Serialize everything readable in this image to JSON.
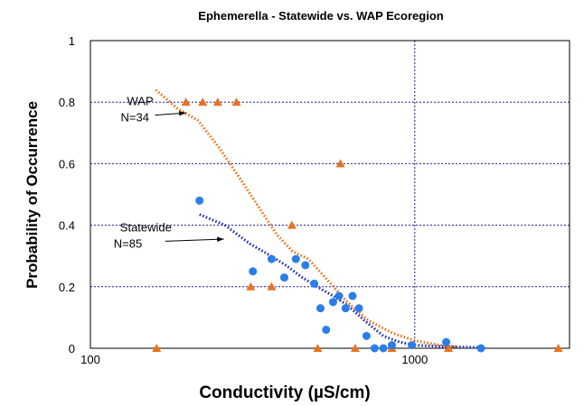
{
  "chart_data": {
    "type": "scatter",
    "title": "Ephemerella - Statewide vs. WAP Ecoregion",
    "xlabel": "Conductivity (µS/cm)",
    "ylabel": "Probability of Occurrence",
    "x_scale": "log",
    "xlim": [
      100,
      3000
    ],
    "ylim": [
      0,
      1
    ],
    "x_ticks": [
      {
        "value": 100,
        "label": "100"
      },
      {
        "value": 1000,
        "label": "1000"
      }
    ],
    "y_ticks": [
      {
        "value": 0,
        "label": "0"
      },
      {
        "value": 0.2,
        "label": "0.2"
      },
      {
        "value": 0.4,
        "label": "0.4"
      },
      {
        "value": 0.6,
        "label": "0.6"
      },
      {
        "value": 0.8,
        "label": "0.8"
      },
      {
        "value": 1,
        "label": "1"
      }
    ],
    "grid": true,
    "series": [
      {
        "kind": "points",
        "marker": "triangle",
        "color": "#e8731f",
        "points": [
          [
            160,
            0
          ],
          [
            197,
            0.8
          ],
          [
            222,
            0.8
          ],
          [
            247,
            0.8
          ],
          [
            282,
            0.8
          ],
          [
            312,
            0.2
          ],
          [
            362,
            0.2
          ],
          [
            418,
            0.4
          ],
          [
            502,
            0
          ],
          [
            590,
            0.6
          ],
          [
            655,
            0
          ],
          [
            850,
            0
          ],
          [
            1270,
            0
          ],
          [
            2770,
            0
          ]
        ]
      },
      {
        "kind": "points",
        "marker": "circle",
        "color": "#2b7de9",
        "points": [
          [
            217,
            0.48
          ],
          [
            317,
            0.25
          ],
          [
            362,
            0.29
          ],
          [
            396,
            0.23
          ],
          [
            430,
            0.29
          ],
          [
            460,
            0.27
          ],
          [
            490,
            0.21
          ],
          [
            512,
            0.13
          ],
          [
            533,
            0.06
          ],
          [
            560,
            0.15
          ],
          [
            584,
            0.17
          ],
          [
            612,
            0.13
          ],
          [
            643,
            0.17
          ],
          [
            673,
            0.13
          ],
          [
            710,
            0.04
          ],
          [
            752,
            0
          ],
          [
            800,
            0
          ],
          [
            850,
            0.01
          ],
          [
            980,
            0.01
          ],
          [
            1250,
            0.02
          ],
          [
            1600,
            0
          ]
        ]
      },
      {
        "kind": "curve",
        "color": "#e8731f",
        "dash": "dotted",
        "points": [
          [
            159,
            0.84
          ],
          [
            185,
            0.78
          ],
          [
            215,
            0.74
          ],
          [
            250,
            0.65
          ],
          [
            290,
            0.55
          ],
          [
            330,
            0.46
          ],
          [
            375,
            0.37
          ],
          [
            420,
            0.315
          ],
          [
            470,
            0.29
          ],
          [
            540,
            0.22
          ],
          [
            620,
            0.15
          ],
          [
            720,
            0.09
          ],
          [
            850,
            0.05
          ],
          [
            1000,
            0.025
          ],
          [
            1200,
            0.01
          ],
          [
            1350,
            0.005
          ]
        ]
      },
      {
        "kind": "curve",
        "color": "#1f2fb0",
        "dash": "dotted",
        "points": [
          [
            217,
            0.435
          ],
          [
            260,
            0.4
          ],
          [
            310,
            0.34
          ],
          [
            360,
            0.3
          ],
          [
            400,
            0.27
          ],
          [
            450,
            0.23
          ],
          [
            500,
            0.2
          ],
          [
            560,
            0.17
          ],
          [
            620,
            0.14
          ],
          [
            700,
            0.09
          ],
          [
            800,
            0.04
          ],
          [
            900,
            0.02
          ],
          [
            1000,
            0.01
          ],
          [
            1200,
            0.006
          ],
          [
            1600,
            0.002
          ]
        ]
      }
    ],
    "annotations": [
      {
        "lines": [
          "WAP",
          "N=34"
        ],
        "x": 124,
        "y": 0.79,
        "arrow_to": [
          197,
          0.765
        ]
      },
      {
        "lines": [
          "Statewide",
          "N=85"
        ],
        "x": 118,
        "y": 0.38,
        "arrow_to": [
          258,
          0.355
        ]
      }
    ]
  }
}
